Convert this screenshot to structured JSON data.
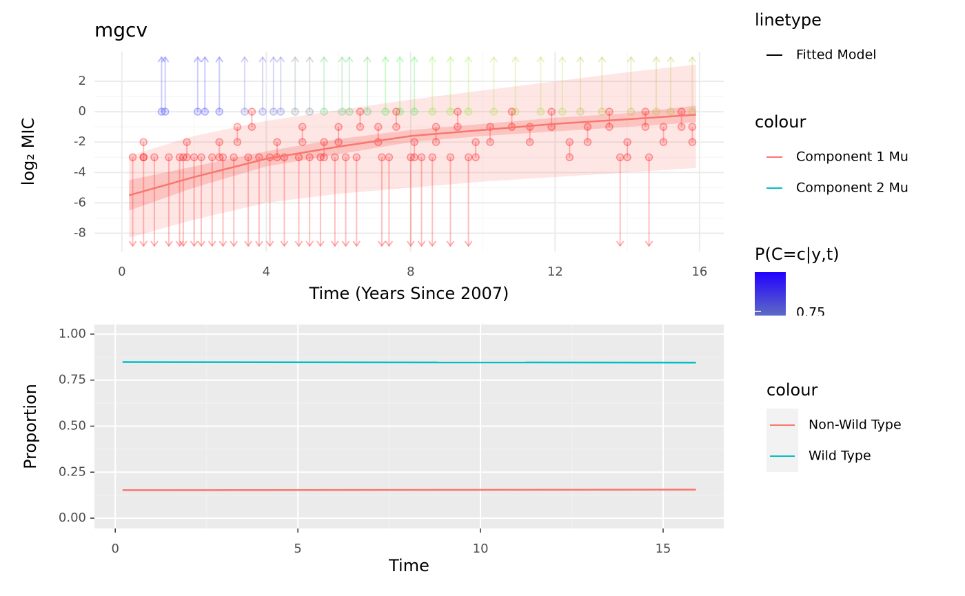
{
  "chart_data": [
    {
      "type": "interval",
      "title": "mgcv",
      "x_label": "Time (Years Since 2007)",
      "y_label": "log₂ MIC",
      "xlim": [
        -0.76,
        16.67
      ],
      "ylim": [
        -9.2,
        3.95
      ],
      "xticks": [
        0,
        4,
        8,
        12,
        16
      ],
      "yticks": [
        -8,
        -6,
        -4,
        -2,
        0,
        2
      ],
      "grid": true,
      "minor_grid": true,
      "observations": {
        "x": [
          1.1,
          1.2,
          2.1,
          2.3,
          2.7,
          3.4,
          3.9,
          4.2,
          4.4,
          4.8,
          5.2,
          5.6,
          6.1,
          6.3,
          6.8,
          7.3,
          7.7,
          8.1,
          8.6,
          9.1,
          9.6,
          10.3,
          10.9,
          11.6,
          12.2,
          12.7,
          13.3,
          14.1,
          14.8,
          15.2,
          15.8,
          0.3,
          0.6,
          0.9,
          1.3,
          1.6,
          1.7,
          2.0,
          2.2,
          2.5,
          2.8,
          3.1,
          3.5,
          3.8,
          4.1,
          4.5,
          4.9,
          5.2,
          5.5,
          5.9,
          6.2,
          6.5,
          7.2,
          7.4,
          8.0,
          8.3,
          8.6,
          9.1,
          9.6,
          13.8,
          14.6,
          0.6,
          1.8,
          2.7,
          3.2,
          3.6,
          4.3,
          5.0,
          5.6,
          6.0,
          6.6,
          7.1,
          7.6,
          8.1,
          8.7,
          9.3,
          9.8,
          10.2,
          10.8,
          11.3,
          11.9,
          12.4,
          12.9,
          13.5,
          14.0,
          14.5,
          15.0,
          15.5,
          15.8
        ],
        "lower": [
          0,
          0,
          0,
          0,
          0,
          0,
          0,
          0,
          0,
          0,
          0,
          0,
          0,
          0,
          0,
          0,
          0,
          0,
          0,
          0,
          0,
          0,
          0,
          0,
          0,
          0,
          0,
          0,
          0,
          0,
          0,
          null,
          null,
          null,
          null,
          null,
          null,
          null,
          null,
          null,
          null,
          null,
          null,
          null,
          null,
          null,
          null,
          null,
          null,
          null,
          null,
          null,
          null,
          null,
          null,
          null,
          null,
          null,
          null,
          null,
          null,
          -3,
          -3,
          -3,
          -2,
          -1,
          -3,
          -2,
          -3,
          -2,
          -1,
          -2,
          -1,
          -3,
          -2,
          -1,
          -3,
          -2,
          -1,
          -2,
          -1,
          -3,
          -2,
          -1,
          -3,
          -1,
          -2,
          -1,
          -2
        ],
        "upper": [
          null,
          null,
          null,
          null,
          null,
          null,
          null,
          null,
          null,
          null,
          null,
          null,
          null,
          null,
          null,
          null,
          null,
          null,
          null,
          null,
          null,
          null,
          null,
          null,
          null,
          null,
          null,
          null,
          null,
          null,
          null,
          -3,
          -3,
          -3,
          -3,
          -3,
          -3,
          -3,
          -3,
          -3,
          -3,
          -3,
          -3,
          -3,
          -3,
          -3,
          -3,
          -3,
          -3,
          -3,
          -3,
          -3,
          -3,
          -3,
          -3,
          -3,
          -3,
          -3,
          -3,
          -3,
          -3,
          -2,
          -2,
          -2,
          -1,
          0,
          -2,
          -1,
          -2,
          -1,
          0,
          -1,
          0,
          -2,
          -1,
          0,
          -2,
          -1,
          0,
          -1,
          0,
          -2,
          -1,
          0,
          -2,
          0,
          -1,
          0,
          -1
        ],
        "colors": [
          "#3333ff",
          "#3333ff",
          "#3333ff",
          "#3333ff",
          "#3333ff",
          "#6666dd",
          "#6666dd",
          "#6666dd",
          "#6666dd",
          "#778899",
          "#778899",
          "#55cc66",
          "#55cc66",
          "#55cc66",
          "#55cc66",
          "#33ee33",
          "#33ee33",
          "#33ee33",
          "#88ee22",
          "#88ee22",
          "#88ee22",
          "#aadd33",
          "#aadd33",
          "#aadd33",
          "#aadd33",
          "#bbbb33",
          "#bbbb33",
          "#bbbb33",
          "#bbbb33",
          "#bbbb33",
          "#bbbb33",
          "#ff0000",
          "#ff0000",
          "#ff0000",
          "#ff0000",
          "#ff0000",
          "#ff0000",
          "#ff0000",
          "#ff0000",
          "#ff0000",
          "#ff0000",
          "#ff0000",
          "#ff0000",
          "#ff0000",
          "#ff0000",
          "#ff0000",
          "#ff0000",
          "#ff0000",
          "#ff0000",
          "#ff0000",
          "#ff0000",
          "#ff0000",
          "#ff0000",
          "#ff0000",
          "#ff0000",
          "#ff0000",
          "#ff0000",
          "#ff0000",
          "#ff0000",
          "#ff0000",
          "#ff0000",
          "#ff0000",
          "#ff0000",
          "#ff0000",
          "#ff0000",
          "#ff0000",
          "#ff0000",
          "#ff0000",
          "#ff0000",
          "#ff0000",
          "#ff0000",
          "#ff0000",
          "#ff0000",
          "#ff0000",
          "#ff0000",
          "#ff0000",
          "#ff0000",
          "#ff0000",
          "#ff0000",
          "#ff0000",
          "#ff0000",
          "#ff0000",
          "#ff0000",
          "#ff0000",
          "#ff0000",
          "#ff0000",
          "#ff0000",
          "#ff0000",
          "#ff0000"
        ]
      },
      "fit": {
        "name": "Fitted Model",
        "color": "#F8766D",
        "x": [
          0.2,
          2,
          4,
          6,
          8,
          10,
          12,
          14,
          15.9
        ],
        "values": [
          -5.5,
          -4.3,
          -3.1,
          -2.3,
          -1.6,
          -1.2,
          -0.8,
          -0.5,
          -0.2
        ],
        "inner_lower": [
          -6.5,
          -5.0,
          -3.6,
          -2.8,
          -2.0,
          -1.6,
          -1.3,
          -1.0,
          -0.7
        ],
        "inner_upper": [
          -4.5,
          -3.6,
          -2.6,
          -1.8,
          -1.2,
          -0.8,
          -0.4,
          -0.1,
          0.4
        ],
        "outer_lower": [
          -8.3,
          -7.1,
          -6.0,
          -5.4,
          -5.0,
          -4.6,
          -4.3,
          -4.0,
          -3.7
        ],
        "outer_upper": [
          -2.9,
          -1.6,
          -0.6,
          0.1,
          0.8,
          1.4,
          2.0,
          2.6,
          3.1
        ]
      },
      "legends": [
        {
          "title": "linetype",
          "items": [
            {
              "name": "Fitted Model",
              "color": "#000000"
            }
          ]
        },
        {
          "title": "colour",
          "items": [
            {
              "name": "Component 1 Mu",
              "color": "#F8766D"
            },
            {
              "name": "Component 2 Mu",
              "color": "#00BFC4"
            }
          ]
        },
        {
          "title": "P(C=c|y,t)",
          "gradient": [
            "#2200ff",
            "#7799aa"
          ],
          "labels": [
            "0.75"
          ]
        }
      ]
    },
    {
      "type": "line",
      "x_label": "Time",
      "y_label": "Proportion",
      "xlim": [
        -0.57,
        16.66
      ],
      "ylim": [
        -0.056,
        1.052
      ],
      "xticks": [
        0,
        5,
        10,
        15
      ],
      "yticks": [
        {
          "value": 0,
          "label": "0.00"
        },
        {
          "value": 0.25,
          "label": "0.25"
        },
        {
          "value": 0.5,
          "label": "0.50"
        },
        {
          "value": 0.75,
          "label": "0.75"
        },
        {
          "value": 1,
          "label": "1.00"
        }
      ],
      "grid": true,
      "minor_grid": true,
      "legend_title": "colour",
      "x": [
        0.2,
        15.9
      ],
      "series": [
        {
          "name": "Non-Wild Type",
          "color": "#F8766D",
          "values": [
            0.152,
            0.155
          ]
        },
        {
          "name": "Wild Type",
          "color": "#00BFC4",
          "values": [
            0.848,
            0.845
          ]
        }
      ]
    }
  ]
}
